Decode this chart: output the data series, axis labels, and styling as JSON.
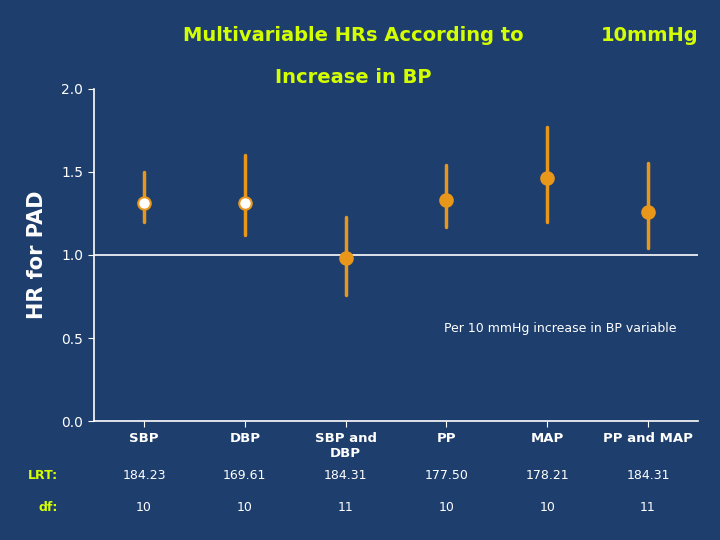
{
  "title_line1": "Multivariable HRs According to",
  "title_line2": "Increase in BP",
  "title_right": "10mmHg",
  "ylabel": "HR for PAD",
  "annotation": "Per 10 mmHg increase in BP variable",
  "bg_color": "#1e3f6e",
  "categories": [
    "SBP",
    "DBP",
    "SBP and\nDBP",
    "PP",
    "MAP",
    "PP and MAP"
  ],
  "centers": [
    1.31,
    1.31,
    0.98,
    1.33,
    1.46,
    1.26
  ],
  "ci_low": [
    1.2,
    1.12,
    0.76,
    1.17,
    1.2,
    1.04
  ],
  "ci_high": [
    1.5,
    1.6,
    1.23,
    1.54,
    1.77,
    1.55
  ],
  "dot_colors": [
    "white",
    "white",
    "#e8971a",
    "#e8971a",
    "#e8971a",
    "#e8971a"
  ],
  "line_color": "#e8971a",
  "lrt_label": "LRT:",
  "df_label": "df:",
  "lrt_values": [
    "184.23",
    "169.61",
    "184.31",
    "177.50",
    "178.21",
    "184.31"
  ],
  "df_values": [
    "10",
    "10",
    "11",
    "10",
    "10",
    "11"
  ],
  "ylim": [
    0,
    2.0
  ],
  "yticks": [
    0,
    0.5,
    1.0,
    1.5,
    2.0
  ],
  "hline_y": 1.0,
  "title_color": "#d4ff00",
  "label_color": "white",
  "lrt_color": "#d4ff00",
  "axis_color": "white"
}
